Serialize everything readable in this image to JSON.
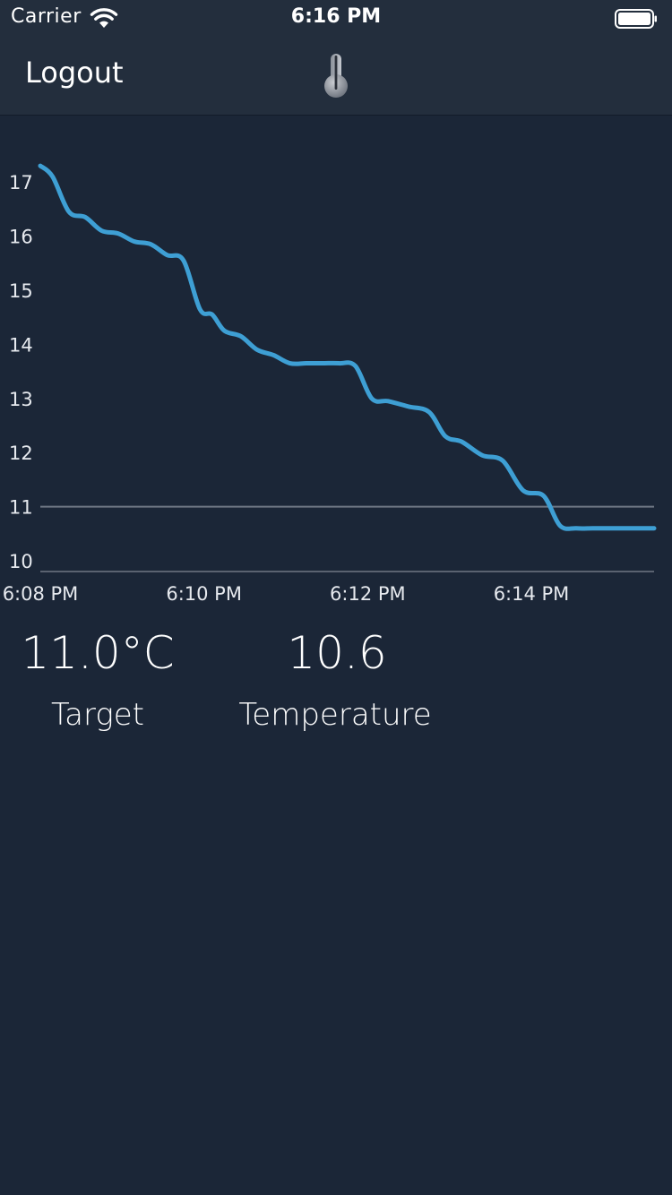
{
  "status_bar": {
    "carrier": "Carrier",
    "time": "6:16 PM",
    "wifi_icon": "wifi-icon",
    "battery_icon": "battery-icon"
  },
  "nav": {
    "logout_label": "Logout",
    "center_icon": "thermometer-icon"
  },
  "colors": {
    "background": "#1b2637",
    "bar": "#232e3d",
    "line": "#3e9fd4",
    "target_line": "#6f7784",
    "text": "#ffffff"
  },
  "chart_data": {
    "type": "line",
    "x_tick_labels": [
      "6:08 PM",
      "6:10 PM",
      "6:12 PM",
      "6:14 PM"
    ],
    "y_tick_labels": [
      "17",
      "16",
      "15",
      "14",
      "13",
      "12",
      "11",
      "10"
    ],
    "ylim": [
      10,
      17.3
    ],
    "xlim_minutes": [
      0,
      7.5
    ],
    "grid": false,
    "reference_line": {
      "value": 11.0
    },
    "series": [
      {
        "x": [
          0,
          0.15,
          0.35,
          0.55,
          0.75,
          0.95,
          1.15,
          1.35,
          1.55,
          1.75,
          1.95,
          2.1,
          2.25,
          2.45,
          2.65,
          2.85,
          3.05,
          3.25,
          3.45,
          3.65,
          3.85,
          4.05,
          4.25,
          4.5,
          4.75,
          4.95,
          5.15,
          5.4,
          5.65,
          5.9,
          6.15,
          6.35,
          6.55,
          6.75,
          6.95,
          7.15,
          7.35,
          7.5
        ],
        "y": [
          17.3,
          17.1,
          16.45,
          16.35,
          16.1,
          16.05,
          15.9,
          15.85,
          15.65,
          15.55,
          14.65,
          14.55,
          14.25,
          14.15,
          13.9,
          13.8,
          13.65,
          13.65,
          13.65,
          13.65,
          13.6,
          13.0,
          12.95,
          12.85,
          12.75,
          12.3,
          12.2,
          11.95,
          11.85,
          11.3,
          11.2,
          10.65,
          10.6,
          10.6,
          10.6,
          10.6,
          10.6,
          10.6
        ]
      }
    ]
  },
  "readouts": {
    "target_value": "11.0°C",
    "target_label": "Target",
    "temperature_value": "10.6",
    "temperature_label": "Temperature"
  }
}
